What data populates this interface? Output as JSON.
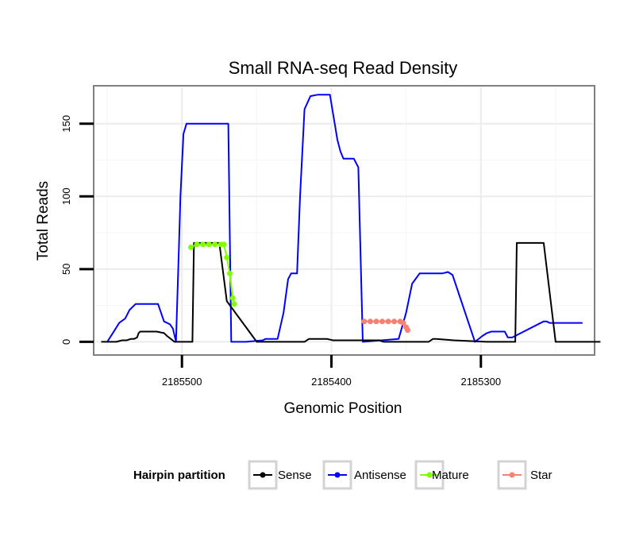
{
  "chart_data": {
    "type": "line",
    "title": "Small RNA-seq Read Density",
    "xlabel": "Genomic Position",
    "ylabel": "Total Reads",
    "x_reversed": true,
    "xlim": [
      2185558,
      2185225
    ],
    "ylim": [
      -8,
      175
    ],
    "x_ticks": [
      2185500,
      2185400,
      2185300
    ],
    "x_tick_labels": [
      "2185500",
      "2185400",
      "2185300"
    ],
    "y_ticks": [
      0,
      50,
      100,
      150
    ],
    "y_tick_labels": [
      "0",
      "50",
      "100",
      "150"
    ],
    "grid": true,
    "legend": {
      "title": "Hairpin partition",
      "position": "bottom",
      "entries": [
        {
          "label": "Sense",
          "color": "#000000"
        },
        {
          "label": "Antisense",
          "color": "#0000ff"
        },
        {
          "label": "Mature",
          "color": "#7fff00"
        },
        {
          "label": "Star",
          "color": "#fa8072"
        }
      ]
    },
    "series": [
      {
        "name": "Antisense",
        "color": "#0000ff",
        "x": [
          2185550,
          2185545,
          2185542,
          2185538,
          2185535,
          2185531,
          2185516,
          2185512,
          2185508,
          2185506,
          2185504,
          2185502,
          2185501,
          2185499,
          2185497,
          2185493,
          2185469,
          2185467,
          2185457,
          2185446,
          2185444,
          2185443,
          2185441,
          2185439,
          2185436,
          2185432,
          2185429,
          2185427,
          2185425,
          2185423,
          2185421,
          2185418,
          2185414,
          2185409,
          2185406,
          2185401,
          2185396,
          2185394,
          2185392,
          2185389,
          2185386,
          2185385,
          2185382,
          2185379,
          2185355,
          2185350,
          2185346,
          2185341,
          2185333,
          2185329,
          2185326,
          2185322,
          2185319,
          2185304,
          2185299,
          2185296,
          2185293,
          2185290,
          2185288,
          2185286,
          2185284,
          2185282,
          2185279,
          2185258,
          2185256,
          2185254,
          2185253,
          2185250,
          2185232
        ],
        "y": [
          0,
          8,
          13,
          16,
          22,
          26,
          26,
          14,
          12,
          9,
          0,
          65,
          100,
          143,
          150,
          150,
          150,
          0,
          0,
          1,
          2,
          2,
          2,
          2,
          2,
          20,
          43,
          47,
          47,
          47,
          100,
          160,
          169,
          170,
          170,
          170,
          139,
          131,
          126,
          126,
          126,
          126,
          120,
          0,
          2,
          20,
          40,
          47,
          47,
          47,
          47,
          48,
          46,
          0,
          4,
          6,
          7,
          7,
          7,
          7,
          7,
          3,
          3,
          14,
          14,
          13,
          13,
          13,
          13
        ]
      },
      {
        "name": "Sense",
        "color": "#000000",
        "x": [
          2185554,
          2185544,
          2185540,
          2185537,
          2185534,
          2185532,
          2185530,
          2185529,
          2185528,
          2185517,
          2185512,
          2185510,
          2185505,
          2185493,
          2185492,
          2185477,
          2185475,
          2185470,
          2185450,
          2185418,
          2185415,
          2185403,
          2185399,
          2185394,
          2185368,
          2185365,
          2185335,
          2185332,
          2185330,
          2185318,
          2185296,
          2185281,
          2185277,
          2185276,
          2185258,
          2185250,
          2185220
        ],
        "y": [
          0,
          0,
          1,
          1,
          2,
          2,
          3,
          6,
          7,
          7,
          6,
          4,
          0,
          0,
          68,
          68,
          68,
          28,
          0,
          0,
          2,
          2,
          1,
          1,
          1,
          0,
          0,
          2,
          2,
          1,
          0,
          0,
          0,
          68,
          68,
          0,
          0
        ]
      },
      {
        "name": "Mature",
        "color": "#7fff00",
        "x": [
          2185494,
          2185490,
          2185486,
          2185482,
          2185478,
          2185474,
          2185472,
          2185470,
          2185468,
          2185466,
          2185465
        ],
        "y": [
          65,
          67,
          67,
          67,
          67,
          67,
          67,
          58,
          47,
          30,
          26
        ]
      },
      {
        "name": "Star",
        "color": "#fa8072",
        "x": [
          2185378,
          2185374,
          2185370,
          2185366,
          2185362,
          2185358,
          2185354,
          2185352,
          2185350,
          2185349
        ],
        "y": [
          14,
          14,
          14,
          14,
          14,
          14,
          14,
          13,
          10,
          8
        ]
      }
    ]
  }
}
